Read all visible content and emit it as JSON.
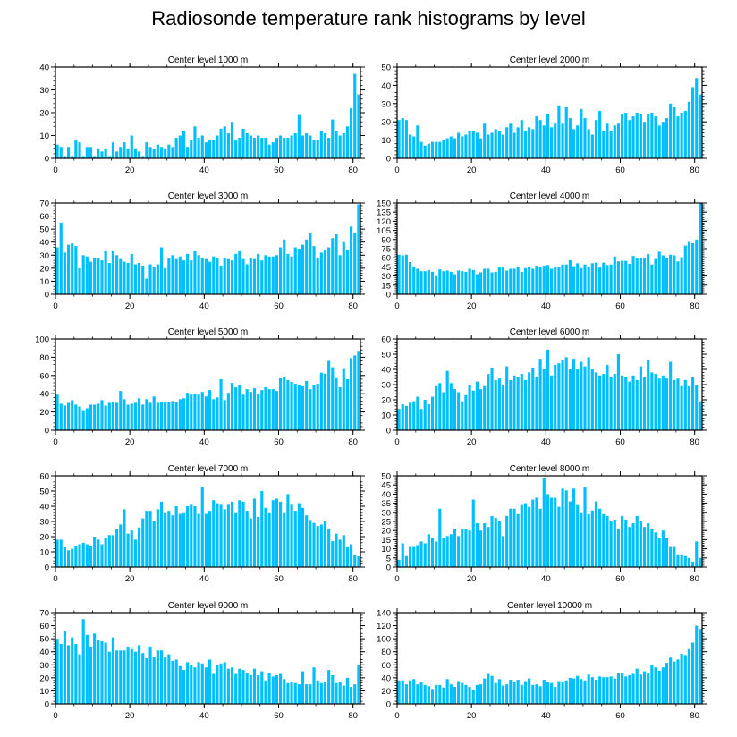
{
  "title": "Radiosonde temperature rank histograms by level",
  "bar_color": "#00bfff",
  "chart_data": [
    {
      "type": "bar",
      "title": "Center level 1000 m",
      "xlim": [
        0,
        82
      ],
      "ylim": [
        0,
        40
      ],
      "xticks": [
        0,
        20,
        40,
        60,
        80
      ],
      "yticks": [
        0,
        10,
        20,
        30,
        40
      ],
      "values": [
        6,
        5,
        1,
        5,
        1,
        8,
        7,
        1,
        5,
        5,
        1,
        4,
        3,
        4,
        1,
        7,
        3,
        5,
        7,
        4,
        10,
        4,
        3,
        1,
        7,
        5,
        4,
        6,
        5,
        4,
        6,
        5,
        9,
        10,
        12,
        5,
        8,
        14,
        9,
        10,
        7,
        8,
        8,
        10,
        13,
        14,
        11,
        16,
        8,
        9,
        13,
        11,
        10,
        9,
        10,
        9,
        9,
        6,
        7,
        9,
        10,
        9,
        9,
        10,
        11,
        19,
        10,
        11,
        10,
        8,
        8,
        12,
        11,
        9,
        17,
        12,
        10,
        11,
        14,
        22,
        37,
        28
      ]
    },
    {
      "type": "bar",
      "title": "Center level 2000 m",
      "xlim": [
        0,
        82
      ],
      "ylim": [
        0,
        50
      ],
      "xticks": [
        0,
        20,
        40,
        60,
        80
      ],
      "yticks": [
        0,
        10,
        20,
        30,
        40,
        50
      ],
      "values": [
        21,
        22,
        21,
        13,
        12,
        18,
        9,
        7,
        8,
        9,
        9,
        9,
        10,
        11,
        12,
        11,
        14,
        12,
        13,
        15,
        15,
        14,
        11,
        19,
        13,
        14,
        16,
        15,
        13,
        17,
        19,
        14,
        17,
        21,
        15,
        17,
        16,
        23,
        21,
        18,
        24,
        17,
        19,
        29,
        19,
        28,
        22,
        16,
        18,
        27,
        22,
        16,
        13,
        21,
        26,
        15,
        19,
        15,
        18,
        19,
        24,
        25,
        21,
        23,
        25,
        24,
        20,
        24,
        25,
        23,
        18,
        20,
        22,
        30,
        28,
        23,
        25,
        26,
        31,
        39,
        44,
        35
      ]
    },
    {
      "type": "bar",
      "title": "Center level 3000 m",
      "xlim": [
        0,
        82
      ],
      "ylim": [
        0,
        70
      ],
      "xticks": [
        0,
        20,
        40,
        60,
        80
      ],
      "yticks": [
        0,
        10,
        20,
        30,
        40,
        50,
        60,
        70
      ],
      "values": [
        36,
        55,
        32,
        38,
        39,
        37,
        20,
        30,
        29,
        25,
        28,
        28,
        26,
        33,
        24,
        33,
        30,
        27,
        25,
        24,
        31,
        23,
        24,
        22,
        12,
        23,
        21,
        23,
        36,
        20,
        28,
        30,
        27,
        29,
        26,
        31,
        26,
        33,
        30,
        28,
        27,
        25,
        29,
        28,
        22,
        28,
        27,
        26,
        31,
        33,
        27,
        23,
        28,
        27,
        31,
        26,
        30,
        29,
        29,
        30,
        36,
        42,
        31,
        29,
        36,
        35,
        38,
        42,
        47,
        37,
        28,
        32,
        34,
        36,
        43,
        46,
        30,
        40,
        34,
        52,
        47,
        69
      ]
    },
    {
      "type": "bar",
      "title": "Center level 4000 m",
      "xlim": [
        0,
        82
      ],
      "ylim": [
        0,
        150
      ],
      "xticks": [
        0,
        20,
        40,
        60,
        80
      ],
      "yticks": [
        0,
        15,
        30,
        45,
        60,
        75,
        90,
        105,
        120,
        135,
        150
      ],
      "values": [
        65,
        64,
        65,
        53,
        45,
        42,
        38,
        38,
        40,
        37,
        30,
        41,
        38,
        39,
        37,
        33,
        39,
        38,
        37,
        42,
        40,
        33,
        36,
        42,
        42,
        36,
        37,
        44,
        44,
        39,
        42,
        42,
        45,
        37,
        43,
        45,
        42,
        47,
        45,
        47,
        48,
        42,
        44,
        44,
        49,
        49,
        56,
        46,
        51,
        43,
        49,
        45,
        51,
        52,
        44,
        52,
        48,
        49,
        62,
        54,
        55,
        55,
        50,
        63,
        59,
        60,
        60,
        66,
        49,
        58,
        70,
        64,
        60,
        65,
        64,
        54,
        61,
        80,
        86,
        84,
        90,
        150
      ]
    },
    {
      "type": "bar",
      "title": "Center level 5000 m",
      "xlim": [
        0,
        82
      ],
      "ylim": [
        0,
        100
      ],
      "xticks": [
        0,
        20,
        40,
        60,
        80
      ],
      "yticks": [
        0,
        20,
        40,
        60,
        80,
        100
      ],
      "values": [
        39,
        29,
        27,
        30,
        33,
        28,
        26,
        22,
        24,
        28,
        28,
        29,
        33,
        27,
        30,
        31,
        30,
        43,
        34,
        28,
        29,
        30,
        35,
        28,
        34,
        30,
        37,
        30,
        31,
        31,
        31,
        32,
        31,
        34,
        35,
        41,
        39,
        40,
        39,
        42,
        37,
        44,
        34,
        36,
        56,
        33,
        41,
        52,
        47,
        49,
        39,
        45,
        42,
        46,
        40,
        44,
        47,
        45,
        45,
        43,
        57,
        58,
        55,
        53,
        51,
        50,
        48,
        54,
        45,
        49,
        51,
        63,
        62,
        76,
        69,
        57,
        47,
        67,
        56,
        79,
        82,
        87
      ]
    },
    {
      "type": "bar",
      "title": "Center level 6000 m",
      "xlim": [
        0,
        82
      ],
      "ylim": [
        0,
        60
      ],
      "xticks": [
        0,
        20,
        40,
        60,
        80
      ],
      "yticks": [
        0,
        10,
        20,
        30,
        40,
        50,
        60
      ],
      "values": [
        14,
        17,
        16,
        18,
        19,
        22,
        14,
        20,
        17,
        22,
        29,
        31,
        25,
        39,
        31,
        27,
        25,
        19,
        23,
        30,
        26,
        32,
        27,
        29,
        37,
        41,
        33,
        34,
        30,
        42,
        33,
        36,
        35,
        37,
        33,
        38,
        41,
        35,
        47,
        40,
        53,
        36,
        43,
        44,
        46,
        48,
        40,
        47,
        40,
        45,
        42,
        48,
        40,
        38,
        36,
        37,
        43,
        35,
        37,
        50,
        36,
        35,
        32,
        36,
        33,
        42,
        35,
        46,
        38,
        37,
        34,
        36,
        34,
        45,
        33,
        34,
        29,
        33,
        29,
        35,
        30,
        19
      ]
    },
    {
      "type": "bar",
      "title": "Center level 7000 m",
      "xlim": [
        0,
        82
      ],
      "ylim": [
        0,
        60
      ],
      "xticks": [
        0,
        20,
        40,
        60,
        80
      ],
      "yticks": [
        0,
        10,
        20,
        30,
        40,
        50,
        60
      ],
      "values": [
        18,
        18,
        13,
        11,
        12,
        14,
        15,
        16,
        15,
        14,
        20,
        18,
        15,
        19,
        21,
        21,
        25,
        28,
        38,
        22,
        24,
        18,
        26,
        32,
        37,
        37,
        30,
        38,
        43,
        36,
        37,
        34,
        40,
        35,
        36,
        40,
        41,
        40,
        35,
        53,
        35,
        37,
        44,
        42,
        41,
        38,
        41,
        43,
        36,
        44,
        43,
        37,
        32,
        45,
        33,
        50,
        39,
        36,
        44,
        45,
        43,
        36,
        48,
        41,
        37,
        42,
        39,
        34,
        31,
        29,
        27,
        28,
        30,
        25,
        17,
        22,
        18,
        21,
        13,
        15,
        8,
        7
      ]
    },
    {
      "type": "bar",
      "title": "Center level 8000 m",
      "xlim": [
        0,
        82
      ],
      "ylim": [
        0,
        50
      ],
      "xticks": [
        0,
        20,
        40,
        60,
        80
      ],
      "yticks": [
        0,
        5,
        10,
        15,
        20,
        25,
        30,
        35,
        40,
        45,
        50
      ],
      "values": [
        4,
        13,
        6,
        11,
        11,
        12,
        14,
        13,
        18,
        16,
        14,
        32,
        16,
        17,
        18,
        21,
        17,
        21,
        21,
        20,
        37,
        24,
        20,
        24,
        22,
        28,
        27,
        25,
        17,
        28,
        32,
        32,
        29,
        34,
        35,
        33,
        37,
        38,
        32,
        49,
        40,
        38,
        38,
        33,
        43,
        42,
        36,
        43,
        34,
        30,
        44,
        29,
        31,
        36,
        32,
        29,
        28,
        25,
        26,
        21,
        28,
        26,
        22,
        24,
        28,
        25,
        22,
        24,
        21,
        19,
        16,
        20,
        16,
        11,
        11,
        7,
        7,
        6,
        5,
        3,
        14,
        5
      ]
    },
    {
      "type": "bar",
      "title": "Center level 9000 m",
      "xlim": [
        0,
        82
      ],
      "ylim": [
        0,
        70
      ],
      "xticks": [
        0,
        20,
        40,
        60,
        80
      ],
      "yticks": [
        0,
        10,
        20,
        30,
        40,
        50,
        60,
        70
      ],
      "values": [
        50,
        46,
        56,
        45,
        51,
        46,
        38,
        65,
        53,
        44,
        54,
        49,
        48,
        47,
        40,
        51,
        41,
        41,
        41,
        44,
        42,
        40,
        45,
        39,
        35,
        44,
        36,
        41,
        41,
        36,
        38,
        33,
        34,
        29,
        26,
        32,
        30,
        28,
        32,
        31,
        28,
        34,
        23,
        30,
        31,
        32,
        27,
        28,
        23,
        27,
        26,
        24,
        22,
        27,
        22,
        25,
        18,
        24,
        21,
        22,
        23,
        19,
        16,
        17,
        16,
        15,
        25,
        15,
        15,
        28,
        18,
        16,
        17,
        26,
        22,
        16,
        17,
        14,
        20,
        13,
        15,
        30
      ]
    },
    {
      "type": "bar",
      "title": "Center level 10000 m",
      "xlim": [
        0,
        82
      ],
      "ylim": [
        0,
        140
      ],
      "xticks": [
        0,
        20,
        40,
        60,
        80
      ],
      "yticks": [
        0,
        20,
        40,
        60,
        80,
        100,
        120,
        140
      ],
      "values": [
        36,
        36,
        30,
        36,
        38,
        30,
        33,
        29,
        27,
        23,
        29,
        29,
        25,
        38,
        30,
        26,
        35,
        32,
        29,
        26,
        22,
        29,
        30,
        39,
        46,
        43,
        32,
        38,
        28,
        30,
        37,
        34,
        37,
        29,
        35,
        39,
        29,
        30,
        27,
        37,
        33,
        32,
        26,
        35,
        33,
        36,
        40,
        39,
        43,
        38,
        36,
        45,
        41,
        37,
        42,
        41,
        41,
        42,
        39,
        48,
        47,
        42,
        44,
        46,
        54,
        45,
        50,
        47,
        59,
        56,
        51,
        56,
        63,
        71,
        65,
        68,
        77,
        75,
        84,
        94,
        120,
        115
      ]
    }
  ]
}
